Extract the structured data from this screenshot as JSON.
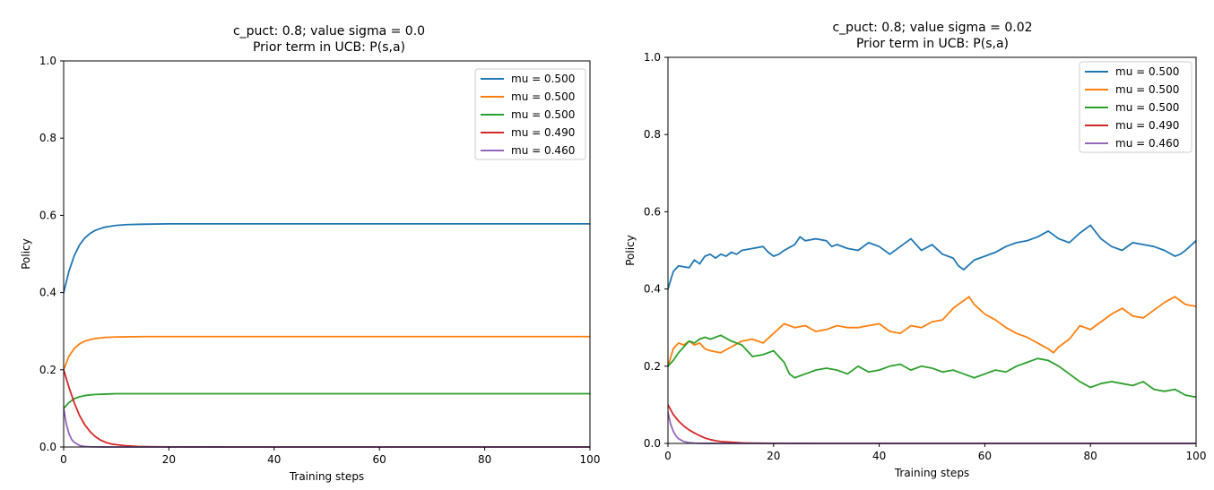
{
  "chart_data": [
    {
      "type": "line",
      "title": "c_puct: 0.8; value sigma = 0.0",
      "subtitle": "Prior term in UCB: P(s,a)",
      "xlabel": "Training steps",
      "ylabel": "Policy",
      "xlim": [
        0,
        100
      ],
      "ylim": [
        0.0,
        1.0
      ],
      "xticks": [
        "0",
        "20",
        "40",
        "60",
        "80",
        "100"
      ],
      "yticks": [
        "0.0",
        "0.2",
        "0.4",
        "0.6",
        "0.8",
        "1.0"
      ],
      "grid": false,
      "legend_position": "top-right",
      "series": [
        {
          "name": "mu = 0.500",
          "color": "#1f77b4",
          "x": [
            0,
            1,
            2,
            3,
            4,
            5,
            6,
            7,
            8,
            10,
            12,
            15,
            20,
            30,
            40,
            60,
            80,
            100
          ],
          "y": [
            0.4,
            0.455,
            0.495,
            0.523,
            0.541,
            0.553,
            0.561,
            0.566,
            0.57,
            0.574,
            0.576,
            0.577,
            0.578,
            0.578,
            0.578,
            0.578,
            0.578,
            0.578
          ]
        },
        {
          "name": "mu = 0.500",
          "color": "#ff7f0e",
          "x": [
            0,
            1,
            2,
            3,
            4,
            5,
            6,
            8,
            10,
            15,
            20,
            40,
            60,
            80,
            100
          ],
          "y": [
            0.2,
            0.235,
            0.255,
            0.267,
            0.274,
            0.278,
            0.281,
            0.284,
            0.285,
            0.286,
            0.286,
            0.286,
            0.286,
            0.286,
            0.286
          ]
        },
        {
          "name": "mu = 0.500",
          "color": "#2ca02c",
          "x": [
            0,
            1,
            2,
            3,
            4,
            5,
            6,
            8,
            10,
            15,
            20,
            40,
            60,
            80,
            100
          ],
          "y": [
            0.1,
            0.115,
            0.125,
            0.13,
            0.133,
            0.135,
            0.136,
            0.137,
            0.138,
            0.138,
            0.138,
            0.138,
            0.138,
            0.138,
            0.138
          ]
        },
        {
          "name": "mu = 0.490",
          "color": "#d62728",
          "x": [
            0,
            1,
            2,
            3,
            4,
            5,
            6,
            7,
            8,
            9,
            10,
            12,
            14,
            16,
            20,
            30,
            40,
            60,
            80,
            100
          ],
          "y": [
            0.2,
            0.155,
            0.115,
            0.082,
            0.058,
            0.04,
            0.027,
            0.018,
            0.012,
            0.008,
            0.006,
            0.003,
            0.0015,
            0.0008,
            0.0003,
            0.0001,
            0,
            0,
            0,
            0
          ]
        },
        {
          "name": "mu = 0.460",
          "color": "#9467bd",
          "x": [
            0,
            0.5,
            1,
            1.5,
            2,
            3,
            4,
            5,
            6,
            8,
            10,
            20,
            40,
            60,
            80,
            100
          ],
          "y": [
            0.1,
            0.06,
            0.035,
            0.02,
            0.012,
            0.004,
            0.0015,
            0.0006,
            0.0002,
            0.0001,
            0,
            0,
            0,
            0,
            0,
            0
          ]
        }
      ]
    },
    {
      "type": "line",
      "title": "c_puct: 0.8; value sigma = 0.02",
      "subtitle": "Prior term in UCB: P(s,a)",
      "xlabel": "Training steps",
      "ylabel": "Policy",
      "xlim": [
        0,
        100
      ],
      "ylim": [
        0.0,
        1.0
      ],
      "xticks": [
        "0",
        "20",
        "40",
        "60",
        "80",
        "100"
      ],
      "yticks": [
        "0.0",
        "0.2",
        "0.4",
        "0.6",
        "0.8",
        "1.0"
      ],
      "grid": false,
      "legend_position": "top-right",
      "series": [
        {
          "name": "mu = 0.500",
          "color": "#1f77b4",
          "x": [
            0,
            1,
            2,
            4,
            5,
            6,
            7,
            8,
            9,
            10,
            11,
            12,
            13,
            14,
            16,
            18,
            19,
            20,
            21,
            22,
            24,
            25,
            26,
            28,
            30,
            31,
            32,
            34,
            36,
            38,
            40,
            42,
            44,
            46,
            48,
            50,
            52,
            54,
            55,
            56,
            58,
            60,
            62,
            64,
            66,
            68,
            70,
            72,
            74,
            76,
            78,
            80,
            82,
            84,
            86,
            88,
            90,
            92,
            94,
            96,
            97,
            98,
            100
          ],
          "y": [
            0.4,
            0.445,
            0.46,
            0.455,
            0.475,
            0.465,
            0.485,
            0.49,
            0.48,
            0.49,
            0.485,
            0.495,
            0.49,
            0.5,
            0.505,
            0.51,
            0.495,
            0.485,
            0.49,
            0.5,
            0.515,
            0.535,
            0.525,
            0.53,
            0.525,
            0.51,
            0.515,
            0.505,
            0.5,
            0.52,
            0.51,
            0.49,
            0.51,
            0.53,
            0.5,
            0.515,
            0.49,
            0.48,
            0.46,
            0.45,
            0.475,
            0.485,
            0.495,
            0.51,
            0.52,
            0.525,
            0.535,
            0.55,
            0.53,
            0.52,
            0.545,
            0.565,
            0.53,
            0.51,
            0.5,
            0.52,
            0.515,
            0.51,
            0.5,
            0.485,
            0.49,
            0.5,
            0.525
          ]
        },
        {
          "name": "mu = 0.500",
          "color": "#ff7f0e",
          "x": [
            0,
            1,
            2,
            3,
            4,
            5,
            6,
            7,
            8,
            10,
            12,
            14,
            16,
            18,
            20,
            22,
            24,
            26,
            28,
            30,
            32,
            34,
            36,
            38,
            40,
            42,
            44,
            46,
            48,
            50,
            52,
            54,
            56,
            57,
            58,
            60,
            62,
            64,
            66,
            68,
            70,
            72,
            73,
            74,
            76,
            78,
            80,
            82,
            84,
            86,
            88,
            90,
            92,
            94,
            96,
            98,
            100
          ],
          "y": [
            0.2,
            0.245,
            0.26,
            0.255,
            0.265,
            0.255,
            0.26,
            0.245,
            0.24,
            0.235,
            0.25,
            0.265,
            0.27,
            0.26,
            0.285,
            0.31,
            0.3,
            0.305,
            0.29,
            0.295,
            0.305,
            0.3,
            0.3,
            0.305,
            0.31,
            0.29,
            0.285,
            0.305,
            0.3,
            0.315,
            0.32,
            0.35,
            0.37,
            0.38,
            0.36,
            0.335,
            0.32,
            0.3,
            0.285,
            0.275,
            0.26,
            0.245,
            0.235,
            0.25,
            0.27,
            0.305,
            0.295,
            0.315,
            0.335,
            0.35,
            0.33,
            0.325,
            0.345,
            0.365,
            0.38,
            0.36,
            0.355
          ]
        },
        {
          "name": "mu = 0.500",
          "color": "#2ca02c",
          "x": [
            0,
            1,
            2,
            3,
            4,
            5,
            6,
            7,
            8,
            9,
            10,
            12,
            14,
            16,
            18,
            20,
            22,
            23,
            24,
            26,
            28,
            30,
            32,
            34,
            36,
            38,
            40,
            42,
            44,
            46,
            48,
            50,
            52,
            54,
            56,
            58,
            60,
            62,
            64,
            66,
            68,
            70,
            72,
            74,
            76,
            78,
            80,
            82,
            84,
            86,
            88,
            90,
            92,
            94,
            96,
            98,
            100
          ],
          "y": [
            0.2,
            0.215,
            0.235,
            0.25,
            0.265,
            0.26,
            0.27,
            0.275,
            0.27,
            0.275,
            0.28,
            0.265,
            0.255,
            0.225,
            0.23,
            0.24,
            0.21,
            0.18,
            0.17,
            0.18,
            0.19,
            0.195,
            0.19,
            0.18,
            0.2,
            0.185,
            0.19,
            0.2,
            0.205,
            0.19,
            0.2,
            0.195,
            0.185,
            0.19,
            0.18,
            0.17,
            0.18,
            0.19,
            0.185,
            0.2,
            0.21,
            0.22,
            0.215,
            0.2,
            0.18,
            0.16,
            0.145,
            0.155,
            0.16,
            0.155,
            0.15,
            0.16,
            0.14,
            0.135,
            0.14,
            0.125,
            0.12
          ]
        },
        {
          "name": "mu = 0.490",
          "color": "#d62728",
          "x": [
            0,
            1,
            2,
            3,
            4,
            5,
            6,
            7,
            8,
            9,
            10,
            12,
            14,
            16,
            20,
            30,
            40,
            60,
            80,
            100
          ],
          "y": [
            0.1,
            0.075,
            0.058,
            0.045,
            0.035,
            0.027,
            0.02,
            0.014,
            0.01,
            0.007,
            0.005,
            0.003,
            0.0015,
            0.0008,
            0.0003,
            0,
            0,
            0,
            0,
            0
          ]
        },
        {
          "name": "mu = 0.460",
          "color": "#9467bd",
          "x": [
            0,
            0.5,
            1,
            1.5,
            2,
            3,
            4,
            5,
            6,
            8,
            10,
            20,
            40,
            60,
            80,
            100
          ],
          "y": [
            0.08,
            0.05,
            0.032,
            0.02,
            0.012,
            0.005,
            0.002,
            0.0008,
            0.0003,
            0.0001,
            0,
            0,
            0,
            0,
            0,
            0
          ]
        }
      ]
    }
  ]
}
